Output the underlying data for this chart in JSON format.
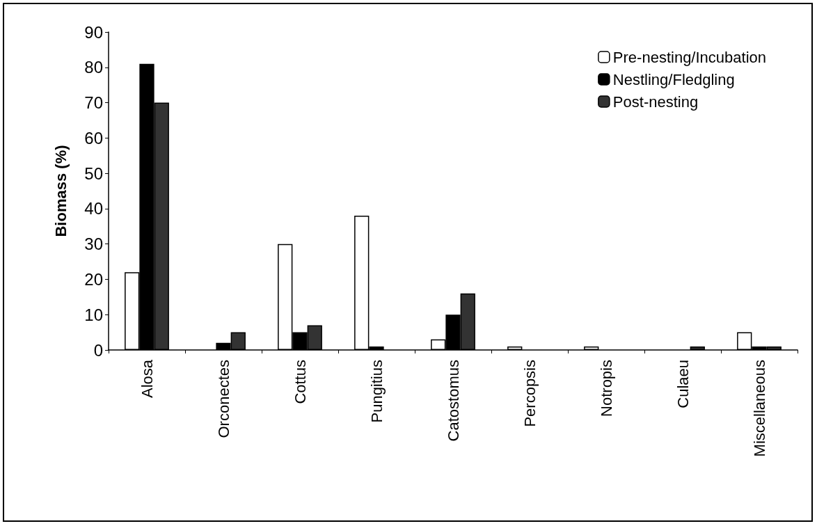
{
  "chart_data": {
    "type": "bar",
    "ylabel": "Biomass (%)",
    "categories": [
      "Alosa",
      "Orconectes",
      "Cottus",
      "Pungitius",
      "Catostomus",
      "Percopsis",
      "Notropis",
      "Culaeu",
      "Miscellaneous"
    ],
    "series": [
      {
        "name": "Pre-nesting/Incubation",
        "color": "#ffffff",
        "values": [
          22,
          0,
          30,
          38,
          3,
          1,
          1,
          0,
          5
        ]
      },
      {
        "name": "Nestling/Fledgling",
        "color": "#000000",
        "values": [
          81,
          2,
          5,
          1,
          10,
          0,
          0,
          0,
          1
        ]
      },
      {
        "name": "Post-nesting",
        "color": "#333333",
        "values": [
          70,
          5,
          7,
          0,
          16,
          0,
          0,
          1,
          1
        ]
      }
    ],
    "ylim": [
      0,
      90
    ],
    "yticks": [
      0,
      10,
      20,
      30,
      40,
      50,
      60,
      70,
      80,
      90
    ],
    "grid": false,
    "legend": "top right"
  }
}
